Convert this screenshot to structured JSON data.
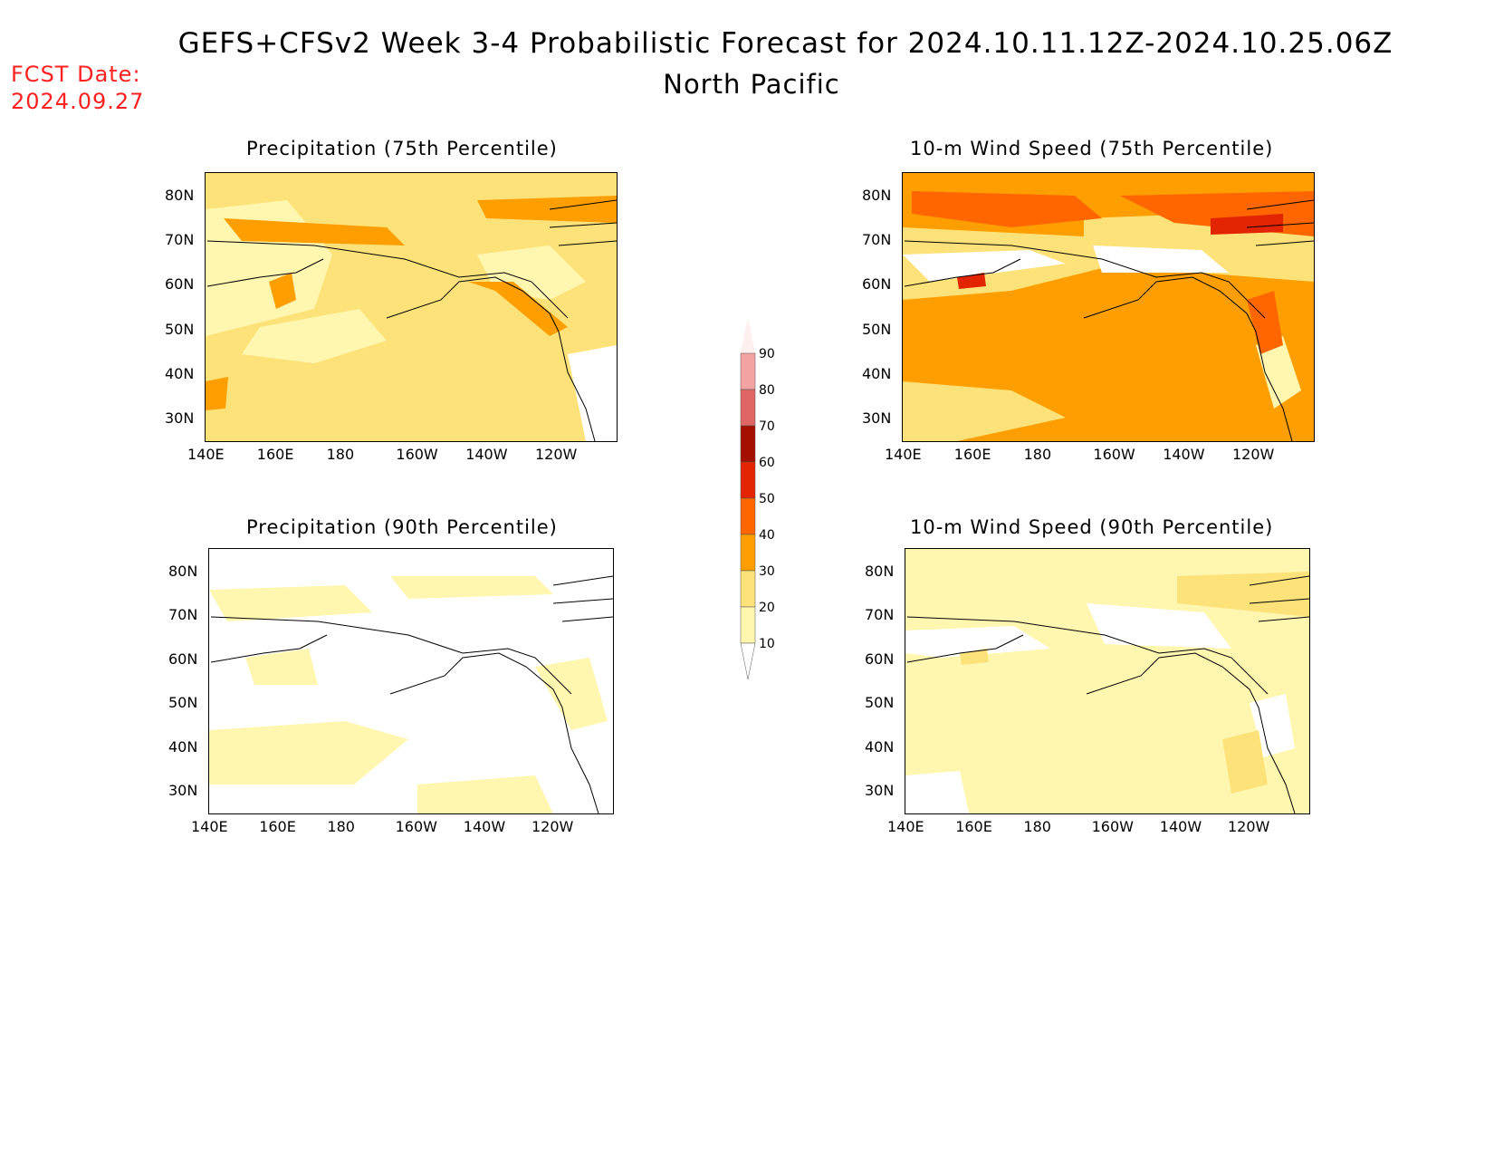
{
  "header": {
    "title": "GEFS+CFSv2 Week 3-4 Probabilistic Forecast for 2024.10.11.12Z-2024.10.25.06Z",
    "subtitle": "North Pacific",
    "fcst_label": "FCST Date:",
    "fcst_value": "2024.09.27"
  },
  "axes": {
    "lon_ticks": [
      "140E",
      "160E",
      "180",
      "160W",
      "140W",
      "120W"
    ],
    "lat_ticks": [
      "80N",
      "70N",
      "60N",
      "50N",
      "40N",
      "30N"
    ]
  },
  "panels": [
    {
      "id": "precip-75",
      "title": "Precipitation (75th Percentile)",
      "dominant_level": 20
    },
    {
      "id": "wind-75",
      "title": "10-m Wind Speed (75th Percentile)",
      "dominant_level": 30
    },
    {
      "id": "precip-90",
      "title": "Precipitation (90th Percentile)",
      "dominant_level": 0
    },
    {
      "id": "wind-90",
      "title": "10-m Wind Speed (90th Percentile)",
      "dominant_level": 10
    }
  ],
  "colorbar": {
    "levels": [
      "90",
      "80",
      "70",
      "60",
      "50",
      "40",
      "30",
      "20",
      "10"
    ],
    "colors": [
      "#fde6e6",
      "#f4a3a3",
      "#e06666",
      "#a50f00",
      "#e32400",
      "#ff6600",
      "#ff9e00",
      "#fde27a",
      "#fff7b0"
    ]
  }
}
